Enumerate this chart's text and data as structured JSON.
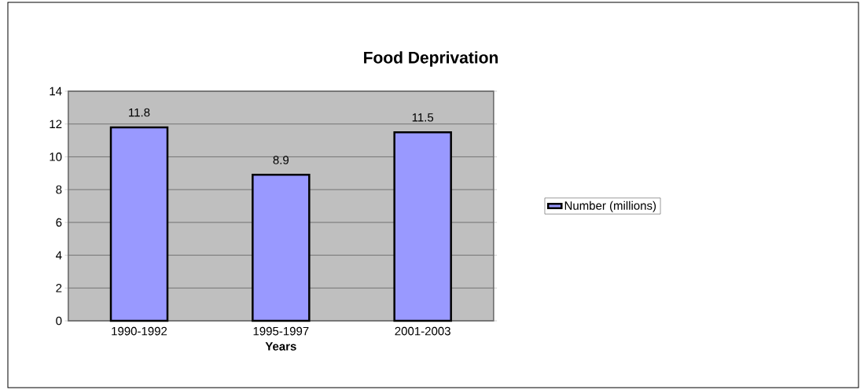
{
  "chart_data": {
    "type": "bar",
    "title": "Food Deprivation",
    "xlabel": "Years",
    "categories": [
      "1990-1992",
      "1995-1997",
      "2001-2003"
    ],
    "series": [
      {
        "name": "Number (millions)",
        "color": "#9999ff",
        "values": [
          11.8,
          8.9,
          11.5
        ]
      }
    ],
    "ylim": [
      0,
      14
    ],
    "yticks": [
      0,
      2,
      4,
      6,
      8,
      10,
      12,
      14
    ],
    "grid": "y",
    "legend": "right",
    "data_labels": true
  }
}
